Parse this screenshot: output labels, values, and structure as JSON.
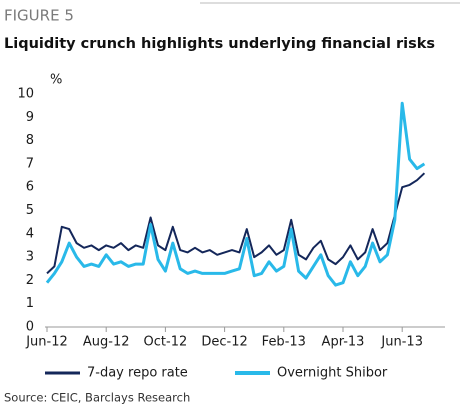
{
  "chart_data": {
    "type": "line",
    "figure_label": "FIGURE 5",
    "title": "Liquidity crunch highlights underlying financial risks",
    "y_label": "%",
    "source": "Source: CEIC, Barclays Research",
    "categories": [
      "Jun-12",
      null,
      null,
      null,
      null,
      null,
      null,
      null,
      "Aug-12",
      null,
      null,
      null,
      null,
      null,
      null,
      null,
      "Oct-12",
      null,
      null,
      null,
      null,
      null,
      null,
      null,
      "Dec-12",
      null,
      null,
      null,
      null,
      null,
      null,
      null,
      "Feb-13",
      null,
      null,
      null,
      null,
      null,
      null,
      null,
      "Apr-13",
      null,
      null,
      null,
      null,
      null,
      null,
      null,
      "Jun-13",
      null,
      null,
      null
    ],
    "series": [
      {
        "name": "7-day repo rate",
        "color": "#14275a",
        "values": [
          2.3,
          2.6,
          4.3,
          4.2,
          3.6,
          3.4,
          3.5,
          3.3,
          3.5,
          3.4,
          3.6,
          3.3,
          3.5,
          3.4,
          4.7,
          3.5,
          3.3,
          4.3,
          3.3,
          3.2,
          3.4,
          3.2,
          3.3,
          3.1,
          3.2,
          3.3,
          3.2,
          4.2,
          3.0,
          3.2,
          3.5,
          3.1,
          3.3,
          4.6,
          3.1,
          2.9,
          3.4,
          3.7,
          2.9,
          2.7,
          3.0,
          3.5,
          2.9,
          3.2,
          4.2,
          3.3,
          3.6,
          4.8,
          6.0,
          6.1,
          6.3,
          6.6
        ]
      },
      {
        "name": "Overnight Shibor",
        "color": "#29b9e9",
        "values": [
          1.9,
          2.3,
          2.8,
          3.6,
          3.0,
          2.6,
          2.7,
          2.6,
          3.1,
          2.7,
          2.8,
          2.6,
          2.7,
          2.7,
          4.4,
          2.9,
          2.4,
          3.6,
          2.5,
          2.3,
          2.4,
          2.3,
          2.3,
          2.3,
          2.3,
          2.4,
          2.5,
          3.8,
          2.2,
          2.3,
          2.8,
          2.4,
          2.6,
          4.2,
          2.4,
          2.1,
          2.6,
          3.1,
          2.2,
          1.8,
          1.9,
          2.8,
          2.2,
          2.6,
          3.6,
          2.8,
          3.1,
          4.6,
          9.6,
          7.2,
          6.8,
          7.0
        ]
      }
    ],
    "ylim": [
      0,
      10
    ],
    "yticks": [
      0,
      1,
      2,
      3,
      4,
      5,
      6,
      7,
      8,
      9,
      10
    ]
  }
}
